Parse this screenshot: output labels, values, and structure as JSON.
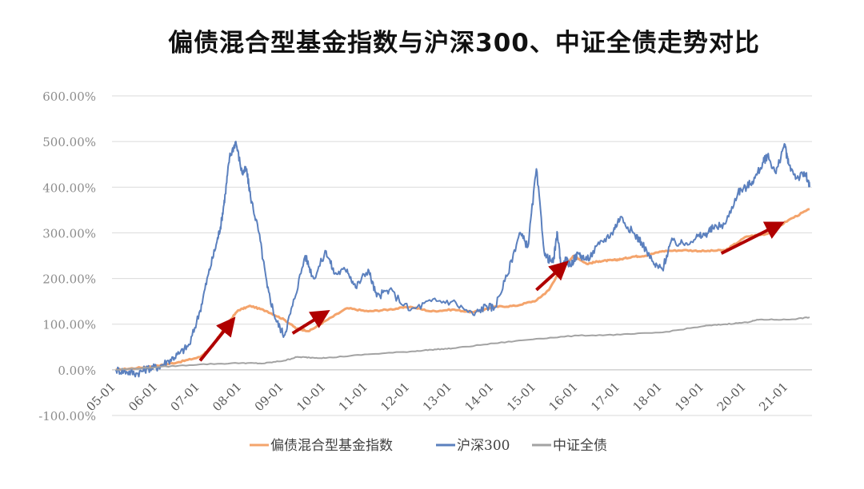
{
  "chart_data": {
    "type": "line",
    "title": "偏债混合型基金指数与沪深300、中证全债走势对比",
    "y_ticks": [
      "600.00%",
      "500.00%",
      "400.00%",
      "300.00%",
      "200.00%",
      "100.00%",
      "0.00%",
      "-100.00%"
    ],
    "ylim": [
      -100,
      600
    ],
    "x_ticks": [
      "05-01",
      "06-01",
      "07-01",
      "08-01",
      "09-01",
      "10-01",
      "11-01",
      "12-01",
      "13-01",
      "14-01",
      "15-01",
      "16-01",
      "17-01",
      "18-01",
      "19-01",
      "20-01",
      "21-01"
    ],
    "grid": true,
    "legend_position": "bottom",
    "series": [
      {
        "name": "偏债混合型基金指数",
        "color": "#F4A46C",
        "x": [
          0,
          0.5,
          1,
          1.5,
          2,
          2.3,
          2.6,
          2.9,
          3.2,
          3.6,
          4,
          4.3,
          4.6,
          5,
          5.5,
          6,
          6.5,
          7,
          7.5,
          8,
          8.5,
          9,
          9.5,
          10,
          10.3,
          10.6,
          10.9,
          11.2,
          11.5,
          11.8,
          12,
          12.3,
          12.6,
          13,
          13.5,
          14,
          14.5,
          15,
          15.5,
          16,
          16.5
        ],
        "values": [
          0,
          4,
          9,
          17,
          28,
          52,
          95,
          130,
          140,
          128,
          110,
          90,
          85,
          108,
          135,
          128,
          132,
          138,
          128,
          132,
          126,
          138,
          140,
          152,
          175,
          225,
          250,
          232,
          238,
          240,
          242,
          248,
          250,
          260,
          262,
          260,
          262,
          292,
          298,
          328,
          352
        ]
      },
      {
        "name": "沪深300",
        "color": "#5B80BE",
        "x": [
          0,
          0.25,
          0.5,
          0.75,
          1,
          1.25,
          1.5,
          1.75,
          2,
          2.2,
          2.4,
          2.5,
          2.6,
          2.7,
          2.85,
          3,
          3.1,
          3.2,
          3.4,
          3.6,
          3.8,
          4,
          4.2,
          4.5,
          4.7,
          5,
          5.2,
          5.5,
          5.7,
          6,
          6.2,
          6.5,
          7,
          7.5,
          8,
          8.5,
          8.8,
          9,
          9.3,
          9.6,
          9.8,
          10,
          10.2,
          10.4,
          10.5,
          10.6,
          10.7,
          10.8,
          11,
          11.2,
          11.5,
          11.8,
          12,
          12.3,
          12.5,
          12.8,
          13,
          13.2,
          13.5,
          13.8,
          14,
          14.2,
          14.5,
          14.8,
          15,
          15.2,
          15.4,
          15.5,
          15.7,
          15.9,
          16,
          16.2,
          16.4,
          16.5
        ],
        "values": [
          0,
          -4,
          -8,
          3,
          6,
          20,
          35,
          55,
          130,
          210,
          280,
          320,
          385,
          465,
          500,
          430,
          440,
          380,
          300,
          180,
          110,
          75,
          140,
          250,
          200,
          260,
          210,
          220,
          180,
          220,
          160,
          175,
          130,
          150,
          150,
          120,
          140,
          135,
          205,
          300,
          270,
          440,
          250,
          235,
          300,
          220,
          240,
          230,
          255,
          240,
          275,
          300,
          335,
          300,
          280,
          230,
          220,
          280,
          275,
          290,
          295,
          310,
          320,
          390,
          400,
          420,
          455,
          470,
          430,
          495,
          450,
          420,
          430,
          400
        ]
      },
      {
        "name": "中证全债",
        "color": "#A3A3A3",
        "x": [
          0,
          1,
          2,
          3,
          3.5,
          4,
          4.3,
          4.6,
          5,
          6,
          7,
          7.5,
          8,
          9,
          10,
          11,
          12,
          13,
          14,
          14.5,
          15,
          15.3,
          16,
          16.5
        ],
        "values": [
          0,
          6,
          12,
          15,
          14,
          20,
          28,
          27,
          26,
          34,
          40,
          44,
          47,
          58,
          68,
          75,
          77,
          82,
          96,
          100,
          104,
          110,
          110,
          115
        ]
      }
    ],
    "annotations": [
      "trend-arrow",
      "trend-arrow",
      "trend-arrow",
      "trend-arrow"
    ]
  }
}
